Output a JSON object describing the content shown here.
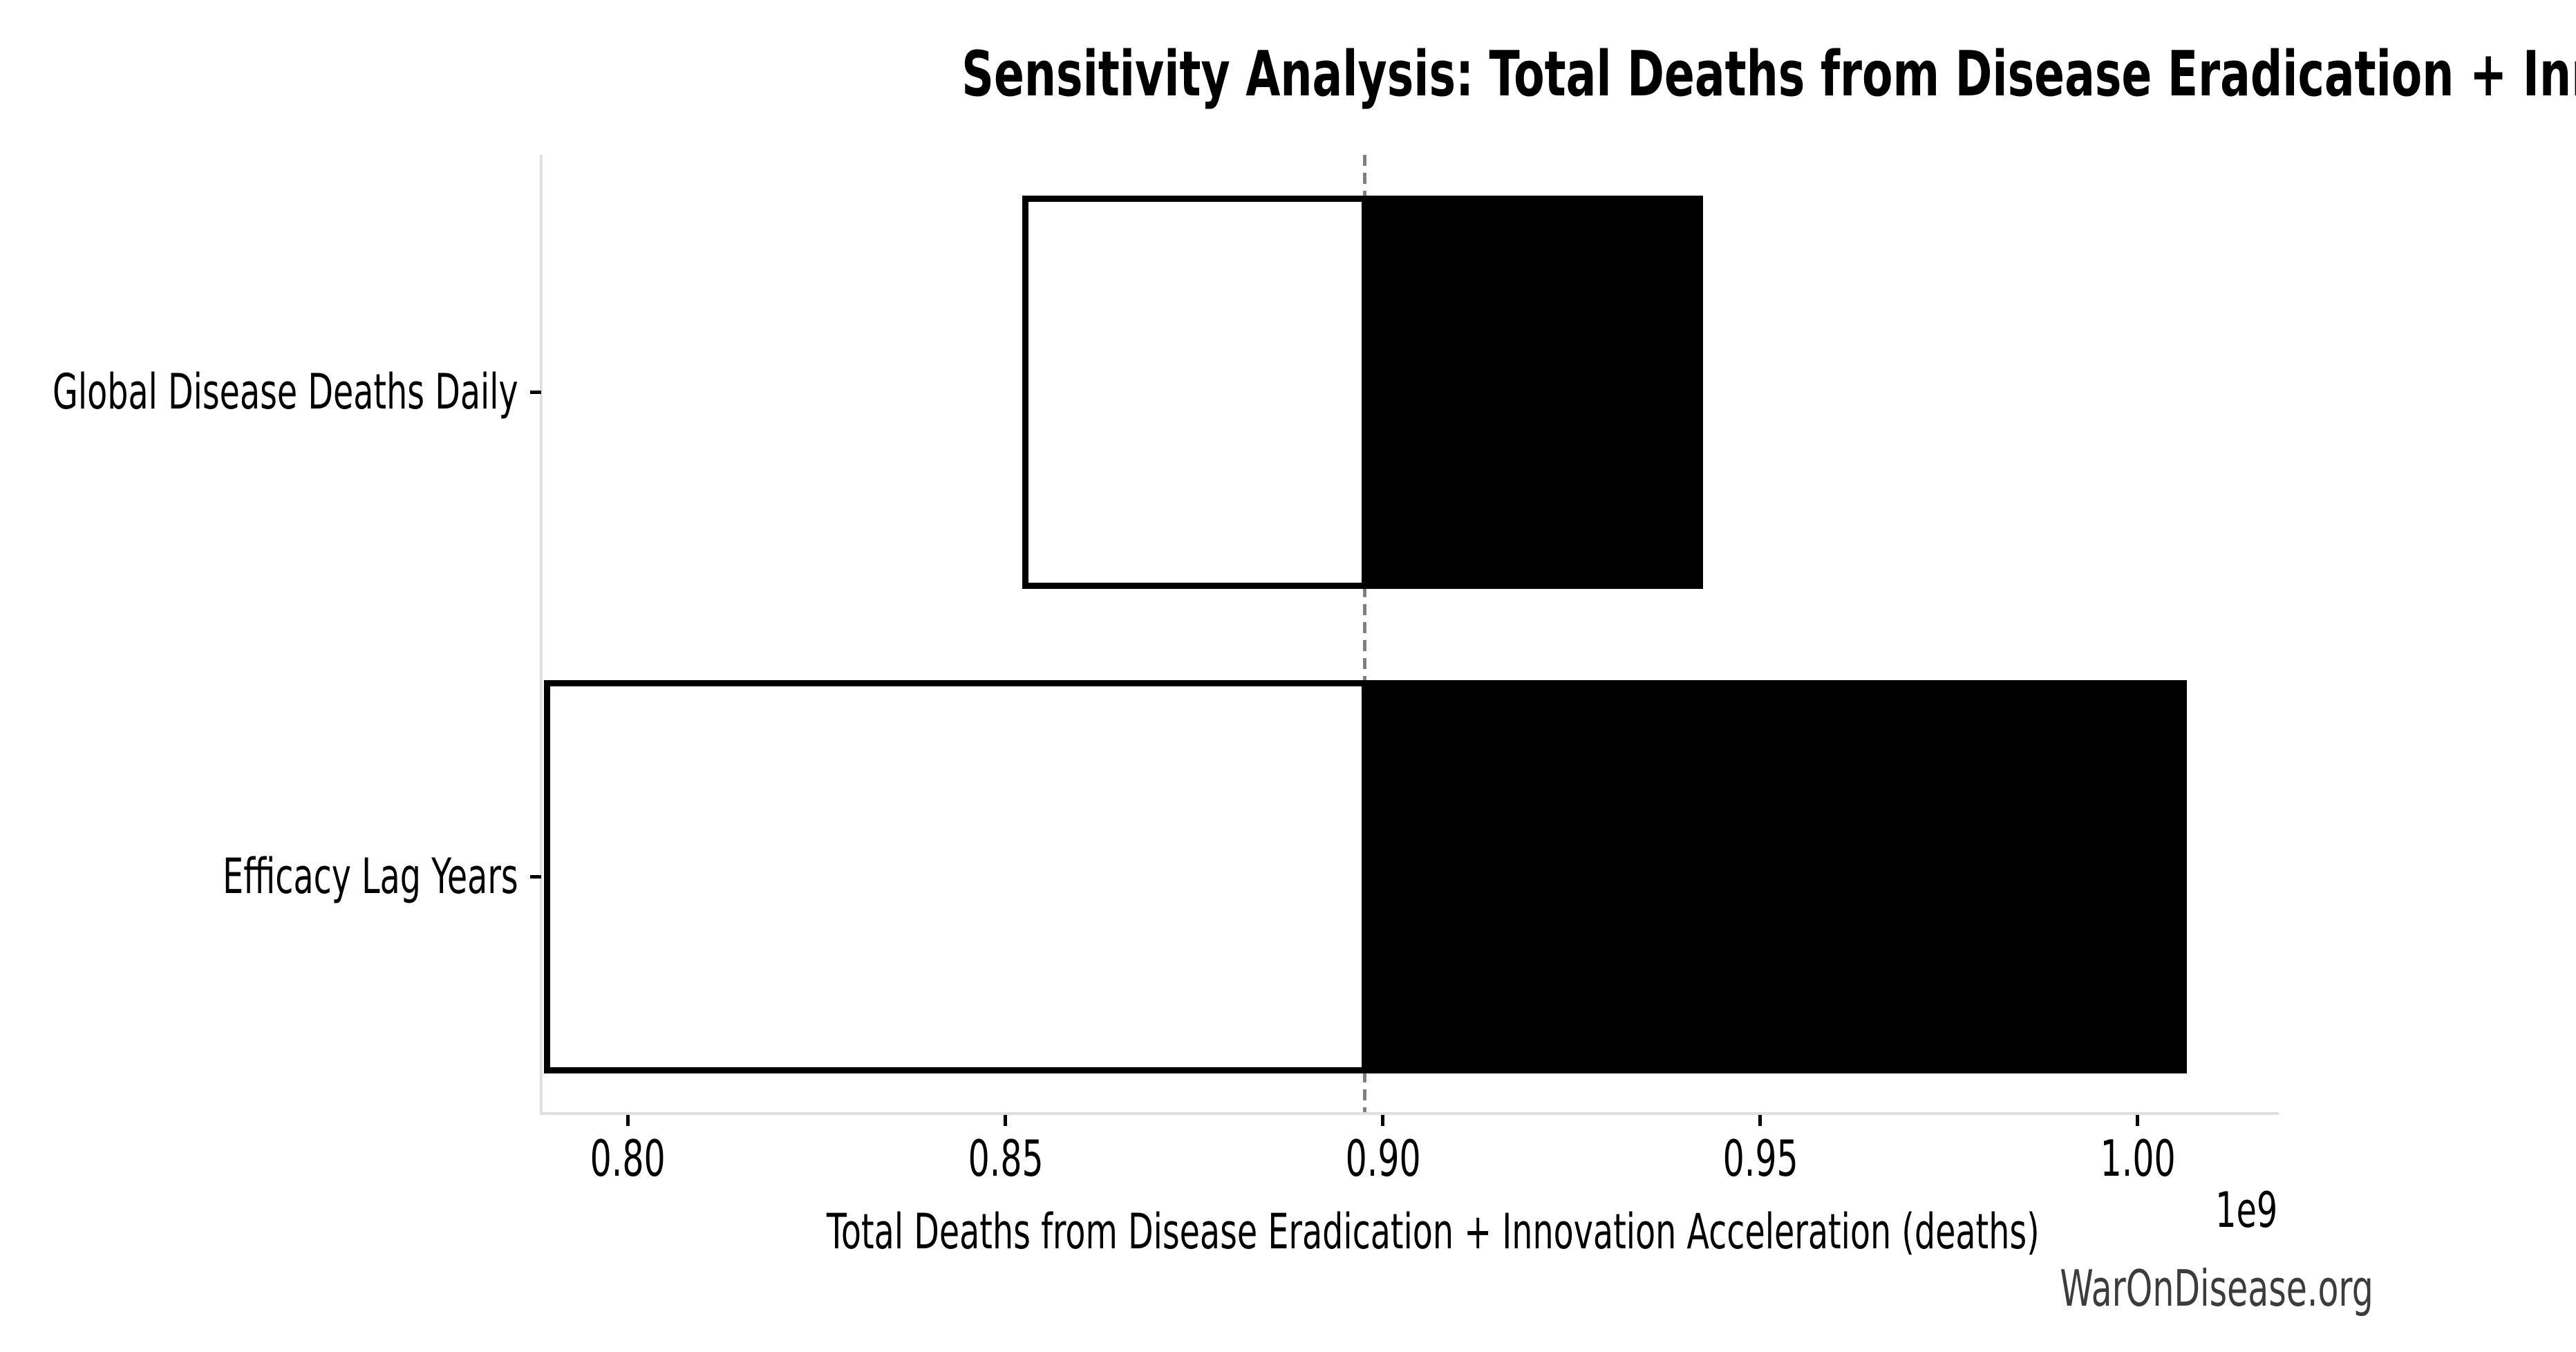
{
  "page": {
    "background_color": "#ffffff"
  },
  "watermark": {
    "text": "WarOnDisease.org",
    "color": "#3c3c3c"
  },
  "chart_data": {
    "type": "bar",
    "variant": "tornado-sensitivity",
    "orientation": "horizontal",
    "title": "Sensitivity Analysis: Total Deaths from Disease Eradication + Innovation Acceleration",
    "xlabel": "Total Deaths from Disease Eradication + Innovation Acceleration (deaths)",
    "x_offset_label": "1e9",
    "x_unit_multiplier": 1000000000,
    "x_units": "deaths",
    "xlim": [
      0.7885,
      1.0185
    ],
    "xticks": [
      {
        "value": 0.8,
        "label": "0.80"
      },
      {
        "value": 0.85,
        "label": "0.85"
      },
      {
        "value": 0.9,
        "label": "0.90"
      },
      {
        "value": 0.95,
        "label": "0.95"
      },
      {
        "value": 1.0,
        "label": "1.00"
      }
    ],
    "baseline": 0.8976,
    "categories": [
      "Global Disease Deaths Daily",
      "Efficacy Lag Years"
    ],
    "bars": [
      {
        "label": "Global Disease Deaths Daily",
        "low": 0.8526,
        "high": 0.942
      },
      {
        "label": "Efficacy Lag Years",
        "low": 0.7893,
        "high": 1.0061
      }
    ],
    "series": [
      {
        "name": "low-side (below baseline)",
        "values": [
          0.8526,
          0.7893
        ]
      },
      {
        "name": "high-side (above baseline)",
        "values": [
          0.942,
          1.0061
        ]
      }
    ],
    "colors": {
      "low_fill": "#ffffff",
      "high_fill": "#000000",
      "bar_edge": "#000000",
      "baseline_line": "#808080",
      "spine": "#e0e0e0",
      "tick": "#000000",
      "text": "#000000"
    },
    "grid": false,
    "legend": null
  }
}
